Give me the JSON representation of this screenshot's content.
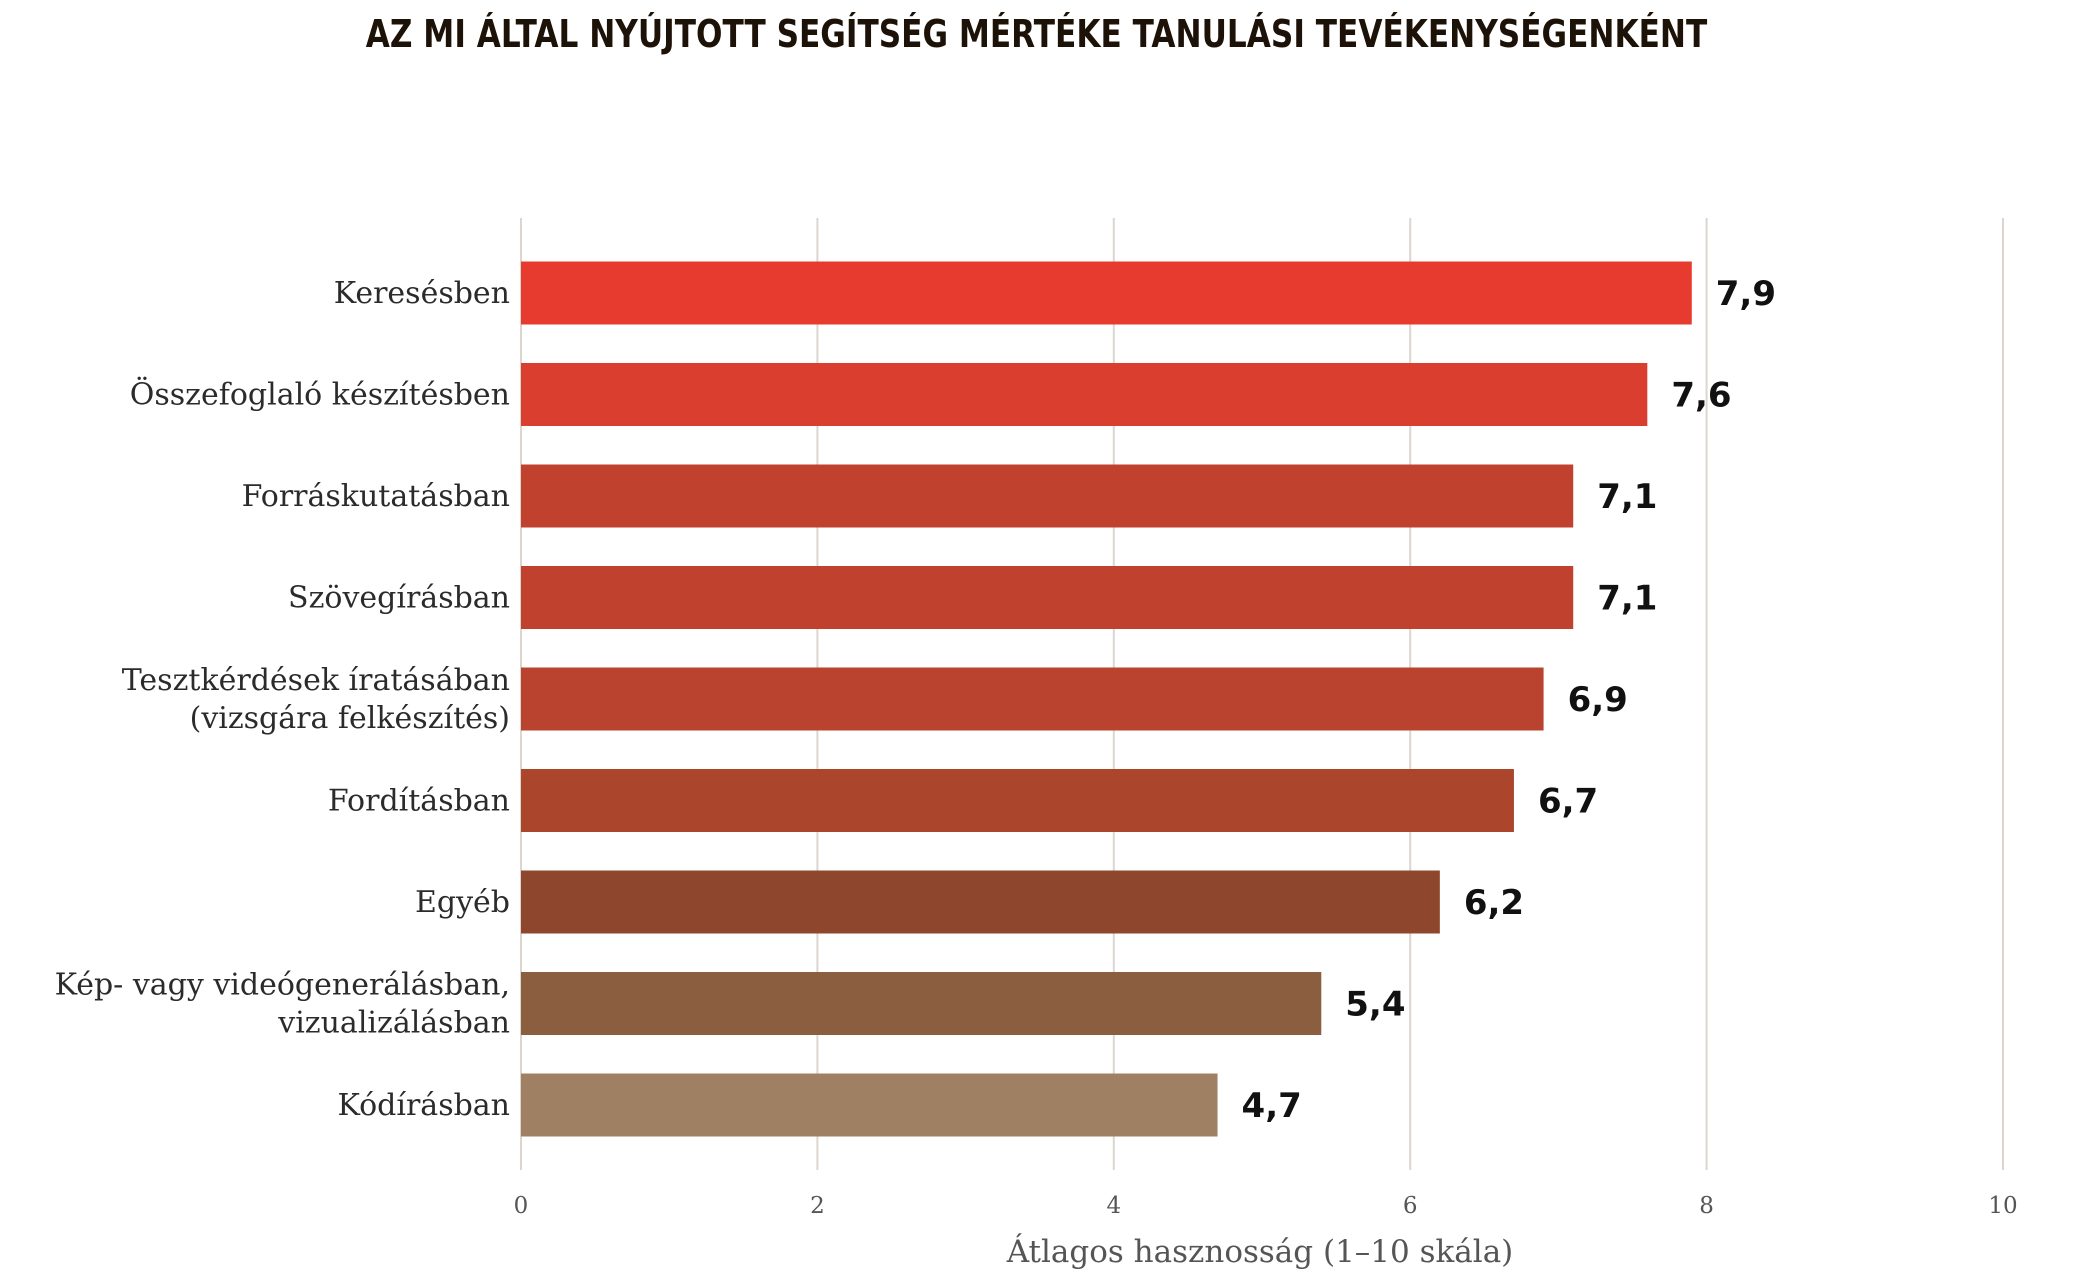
{
  "chart_data": {
    "type": "bar",
    "orientation": "horizontal",
    "title": "AZ MI ÁLTAL NYÚJTOTT SEGÍTSÉG MÉRTÉKE TANULÁSI TEVÉKENYSÉGENKÉNT",
    "xlabel": "Átlagos hasznosság (1–10 skála)",
    "ylabel": "",
    "xlim": [
      0,
      10
    ],
    "xticks": [
      "0",
      "2",
      "4",
      "6",
      "8",
      "10"
    ],
    "grid": true,
    "categories": [
      [
        "Keresésben"
      ],
      [
        "Összefoglaló készítésben"
      ],
      [
        "Forráskutatásban"
      ],
      [
        "Szövegírásban"
      ],
      [
        "Tesztkérdések íratásában",
        "(vizsgára felkészítés)"
      ],
      [
        "Fordításban"
      ],
      [
        "Egyéb"
      ],
      [
        "Kép- vagy videógenerálásban,",
        "vizualizálásban"
      ],
      [
        "Kódírásban"
      ]
    ],
    "values": [
      7.9,
      7.6,
      7.1,
      7.1,
      6.9,
      6.7,
      6.2,
      5.4,
      4.7
    ],
    "value_labels": [
      "7,9",
      "7,6",
      "7,1",
      "7,1",
      "6,9",
      "6,7",
      "6,2",
      "5,4",
      "4,7"
    ],
    "colors": [
      "#e63b2e",
      "#da3e2f",
      "#c0412d",
      "#c0412d",
      "#b9432e",
      "#ab462d",
      "#8e472c",
      "#8a5e3f",
      "#a08062"
    ]
  }
}
